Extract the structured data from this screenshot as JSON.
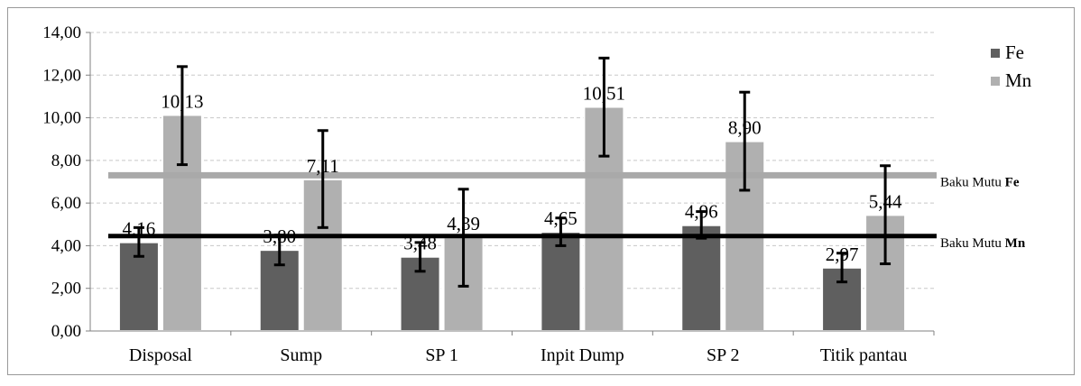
{
  "chart_data": {
    "type": "bar",
    "categories": [
      "Disposal",
      "Sump",
      "SP 1",
      "Inpit Dump",
      "SP 2",
      "Titik pantau"
    ],
    "series": [
      {
        "name": "Fe",
        "color": "#5f5f5f",
        "values": [
          4.16,
          3.8,
          3.48,
          4.65,
          4.96,
          2.97
        ],
        "labels": [
          "4,16",
          "3,80",
          "3,48",
          "4,65",
          "4,96",
          "2,97"
        ],
        "error_low": [
          3.5,
          3.1,
          2.8,
          4.0,
          4.35,
          2.3
        ],
        "error_high": [
          4.85,
          4.5,
          4.15,
          5.3,
          5.6,
          3.65
        ]
      },
      {
        "name": "Mn",
        "color": "#b0b0b0",
        "values": [
          10.13,
          7.11,
          4.39,
          10.51,
          8.9,
          5.44
        ],
        "labels": [
          "10,13",
          "7,11",
          "4,39",
          "10,51",
          "8,90",
          "5,44"
        ],
        "error_low": [
          7.8,
          4.85,
          2.1,
          8.2,
          6.6,
          3.15
        ],
        "error_high": [
          12.4,
          9.4,
          6.65,
          12.8,
          11.2,
          7.75
        ]
      }
    ],
    "ylim": [
      0,
      14
    ],
    "yticks": [
      0,
      2,
      4,
      6,
      8,
      10,
      12,
      14
    ],
    "ytick_labels": [
      "0,00",
      "2,00",
      "4,00",
      "6,00",
      "8,00",
      "10,00",
      "12,00",
      "14,00"
    ],
    "reference_lines": [
      {
        "label_prefix": "Baku Mutu ",
        "label_bold": "Fe",
        "value": 7.3,
        "color": "#a9a9a9"
      },
      {
        "label_prefix": "Baku Mutu ",
        "label_bold": "Mn",
        "value": 4.45,
        "color": "#000000"
      }
    ],
    "grid": true,
    "legend_position": "right"
  }
}
